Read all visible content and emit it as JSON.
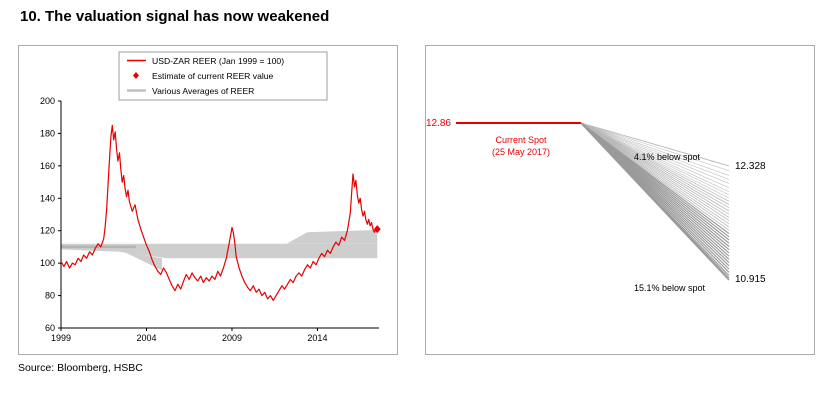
{
  "title": "10. The valuation signal has now weakened",
  "source": "Source: Bloomberg, HSBC",
  "colors": {
    "red": "#e60000",
    "band": "#c9c9c9",
    "band_dark": "#b4b4b4",
    "fan_line": "#b8b8b8",
    "fan_line_dark": "#9a9a9a",
    "axis": "#000000",
    "border": "#ababab"
  },
  "chart_data": [
    {
      "type": "line",
      "name": "usd-zar-reer-history",
      "legend": [
        {
          "label": "USD-ZAR REER (Jan 1999 = 100)",
          "marker": "line",
          "color": "#e60000"
        },
        {
          "label": "Estimate of current REER value",
          "marker": "diamond",
          "color": "#e60000"
        },
        {
          "label": "Various Averages of REER",
          "marker": "line",
          "color": "#c0c0c0"
        }
      ],
      "ylim": [
        60,
        200
      ],
      "yticks": [
        60,
        80,
        100,
        120,
        140,
        160,
        180,
        200
      ],
      "xlim": [
        1999,
        2017.6
      ],
      "xticks": [
        1999,
        2004,
        2009,
        2014
      ],
      "series": [
        {
          "name": "USD-ZAR REER (Jan 1999 = 100)",
          "points": [
            [
              1999.0,
              101
            ],
            [
              1999.17,
              98
            ],
            [
              1999.33,
              101
            ],
            [
              1999.5,
              97
            ],
            [
              1999.67,
              100
            ],
            [
              1999.83,
              99
            ],
            [
              2000.0,
              103
            ],
            [
              2000.17,
              101
            ],
            [
              2000.33,
              105
            ],
            [
              2000.5,
              103
            ],
            [
              2000.67,
              107
            ],
            [
              2000.83,
              105
            ],
            [
              2001.0,
              109
            ],
            [
              2001.17,
              112
            ],
            [
              2001.33,
              110
            ],
            [
              2001.5,
              115
            ],
            [
              2001.58,
              122
            ],
            [
              2001.67,
              133
            ],
            [
              2001.75,
              148
            ],
            [
              2001.83,
              163
            ],
            [
              2001.92,
              178
            ],
            [
              2002.0,
              185
            ],
            [
              2002.08,
              176
            ],
            [
              2002.17,
              181
            ],
            [
              2002.25,
              170
            ],
            [
              2002.33,
              163
            ],
            [
              2002.42,
              168
            ],
            [
              2002.5,
              158
            ],
            [
              2002.58,
              150
            ],
            [
              2002.67,
              154
            ],
            [
              2002.75,
              146
            ],
            [
              2002.83,
              141
            ],
            [
              2002.92,
              145
            ],
            [
              2003.0,
              138
            ],
            [
              2003.17,
              132
            ],
            [
              2003.33,
              136
            ],
            [
              2003.5,
              127
            ],
            [
              2003.67,
              121
            ],
            [
              2003.83,
              116
            ],
            [
              2004.0,
              111
            ],
            [
              2004.17,
              107
            ],
            [
              2004.33,
              102
            ],
            [
              2004.5,
              98
            ],
            [
              2004.67,
              95
            ],
            [
              2004.83,
              93
            ],
            [
              2005.0,
              97
            ],
            [
              2005.17,
              94
            ],
            [
              2005.33,
              90
            ],
            [
              2005.5,
              86
            ],
            [
              2005.67,
              83
            ],
            [
              2005.83,
              87
            ],
            [
              2006.0,
              84
            ],
            [
              2006.17,
              89
            ],
            [
              2006.33,
              93
            ],
            [
              2006.5,
              90
            ],
            [
              2006.67,
              94
            ],
            [
              2006.83,
              91
            ],
            [
              2007.0,
              89
            ],
            [
              2007.17,
              92
            ],
            [
              2007.33,
              88
            ],
            [
              2007.5,
              91
            ],
            [
              2007.67,
              89
            ],
            [
              2007.83,
              92
            ],
            [
              2008.0,
              90
            ],
            [
              2008.17,
              95
            ],
            [
              2008.33,
              92
            ],
            [
              2008.5,
              97
            ],
            [
              2008.67,
              103
            ],
            [
              2008.83,
              112
            ],
            [
              2009.0,
              122
            ],
            [
              2009.08,
              119
            ],
            [
              2009.17,
              112
            ],
            [
              2009.25,
              104
            ],
            [
              2009.42,
              97
            ],
            [
              2009.58,
              92
            ],
            [
              2009.75,
              88
            ],
            [
              2009.92,
              85
            ],
            [
              2010.08,
              83
            ],
            [
              2010.25,
              86
            ],
            [
              2010.42,
              82
            ],
            [
              2010.58,
              84
            ],
            [
              2010.75,
              80
            ],
            [
              2010.92,
              82
            ],
            [
              2011.08,
              78
            ],
            [
              2011.25,
              80
            ],
            [
              2011.42,
              77
            ],
            [
              2011.58,
              80
            ],
            [
              2011.75,
              83
            ],
            [
              2011.92,
              86
            ],
            [
              2012.08,
              84
            ],
            [
              2012.25,
              87
            ],
            [
              2012.42,
              90
            ],
            [
              2012.58,
              88
            ],
            [
              2012.75,
              92
            ],
            [
              2012.92,
              94
            ],
            [
              2013.08,
              92
            ],
            [
              2013.25,
              96
            ],
            [
              2013.42,
              99
            ],
            [
              2013.58,
              97
            ],
            [
              2013.75,
              101
            ],
            [
              2013.92,
              99
            ],
            [
              2014.08,
              103
            ],
            [
              2014.25,
              106
            ],
            [
              2014.42,
              104
            ],
            [
              2014.58,
              108
            ],
            [
              2014.75,
              106
            ],
            [
              2014.92,
              110
            ],
            [
              2015.08,
              113
            ],
            [
              2015.25,
              111
            ],
            [
              2015.42,
              116
            ],
            [
              2015.58,
              114
            ],
            [
              2015.75,
              120
            ],
            [
              2015.92,
              131
            ],
            [
              2016.0,
              143
            ],
            [
              2016.08,
              155
            ],
            [
              2016.17,
              147
            ],
            [
              2016.25,
              151
            ],
            [
              2016.33,
              142
            ],
            [
              2016.42,
              137
            ],
            [
              2016.5,
              140
            ],
            [
              2016.58,
              133
            ],
            [
              2016.67,
              129
            ],
            [
              2016.75,
              132
            ],
            [
              2016.83,
              127
            ],
            [
              2016.92,
              124
            ],
            [
              2017.0,
              127
            ],
            [
              2017.08,
              123
            ],
            [
              2017.17,
              125
            ],
            [
              2017.25,
              121
            ],
            [
              2017.33,
              119
            ],
            [
              2017.42,
              121
            ]
          ]
        }
      ],
      "estimate_point": {
        "x": 2017.5,
        "y": 121,
        "label": "Estimate of current REER value"
      },
      "band": {
        "label": "Various Averages of REER",
        "polygons": [
          [
            [
              1999,
              112
            ],
            [
              2017.5,
              112
            ],
            [
              2017.5,
              103
            ],
            [
              2005.2,
              103
            ],
            [
              2002.4,
              107
            ],
            [
              1999,
              108.5
            ]
          ],
          [
            [
              2002.4,
              108.5
            ],
            [
              2004.9,
              95.5
            ],
            [
              2004.9,
              103
            ],
            [
              2002.9,
              106.5
            ]
          ],
          [
            [
              2012.2,
              112
            ],
            [
              2013.4,
              119
            ],
            [
              2017.5,
              120.5
            ],
            [
              2017.5,
              112
            ]
          ]
        ],
        "line": [
          [
            1999,
            110
          ],
          [
            2003.4,
            110
          ]
        ]
      }
    },
    {
      "type": "fan",
      "name": "usd-zar-spot-projection",
      "spot": {
        "value": 12.86,
        "label": "12.86",
        "annotation_line1": "Current Spot",
        "annotation_line2": "(25 May 2017)"
      },
      "upper": {
        "value": 12.328,
        "label": "12.328",
        "annotation": "4.1% below spot"
      },
      "lower": {
        "value": 10.915,
        "label": "10.915",
        "annotation": "15.1% below spot"
      },
      "fan_end_values": [
        12.328,
        12.27,
        12.21,
        12.16,
        12.11,
        12.06,
        12.01,
        11.97,
        11.93,
        11.89,
        11.85,
        11.81,
        11.77,
        11.73,
        11.69,
        11.65,
        11.61,
        11.57,
        11.53,
        11.49,
        11.45,
        11.41,
        11.37,
        11.33,
        11.29,
        11.25,
        11.21,
        11.17,
        11.13,
        11.09,
        11.05,
        11.01,
        10.97,
        10.94,
        10.915
      ]
    }
  ]
}
